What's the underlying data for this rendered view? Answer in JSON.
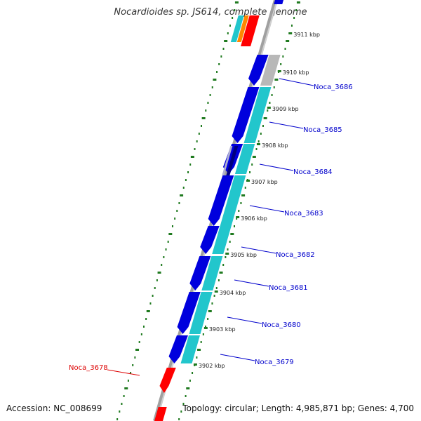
{
  "title": "Nocardioides sp. JS614, complete genome",
  "footer": {
    "accession": "Accession: NC_008699",
    "topology": "Topology: circular; Length: 4,985,871 bp; Genes: 4,700"
  },
  "tick_labels": [
    "3911 kbp",
    "3910 kbp",
    "3909 kbp",
    "3908 kbp",
    "3907 kbp",
    "3906 kbp",
    "3905 kbp",
    "3904 kbp",
    "3903 kbp",
    "3902 kbp"
  ],
  "gene_labels": [
    {
      "name": "Noca_3686",
      "color": "#0000cc"
    },
    {
      "name": "Noca_3685",
      "color": "#0000cc"
    },
    {
      "name": "Noca_3684",
      "color": "#0000cc"
    },
    {
      "name": "Noca_3683",
      "color": "#0000cc"
    },
    {
      "name": "Noca_3682",
      "color": "#0000cc"
    },
    {
      "name": "Noca_3681",
      "color": "#0000cc"
    },
    {
      "name": "Noca_3680",
      "color": "#0000cc"
    },
    {
      "name": "Noca_3679",
      "color": "#0000cc"
    },
    {
      "name": "Noca_3678",
      "color": "#dd0000"
    }
  ],
  "colors": {
    "forward_cds": "#0000dd",
    "cds_band": "#22c6cc",
    "rna": "#ff0000",
    "other": "#ff8800",
    "backbone": "#999999",
    "gc_ticks": "#1f7a1f"
  }
}
